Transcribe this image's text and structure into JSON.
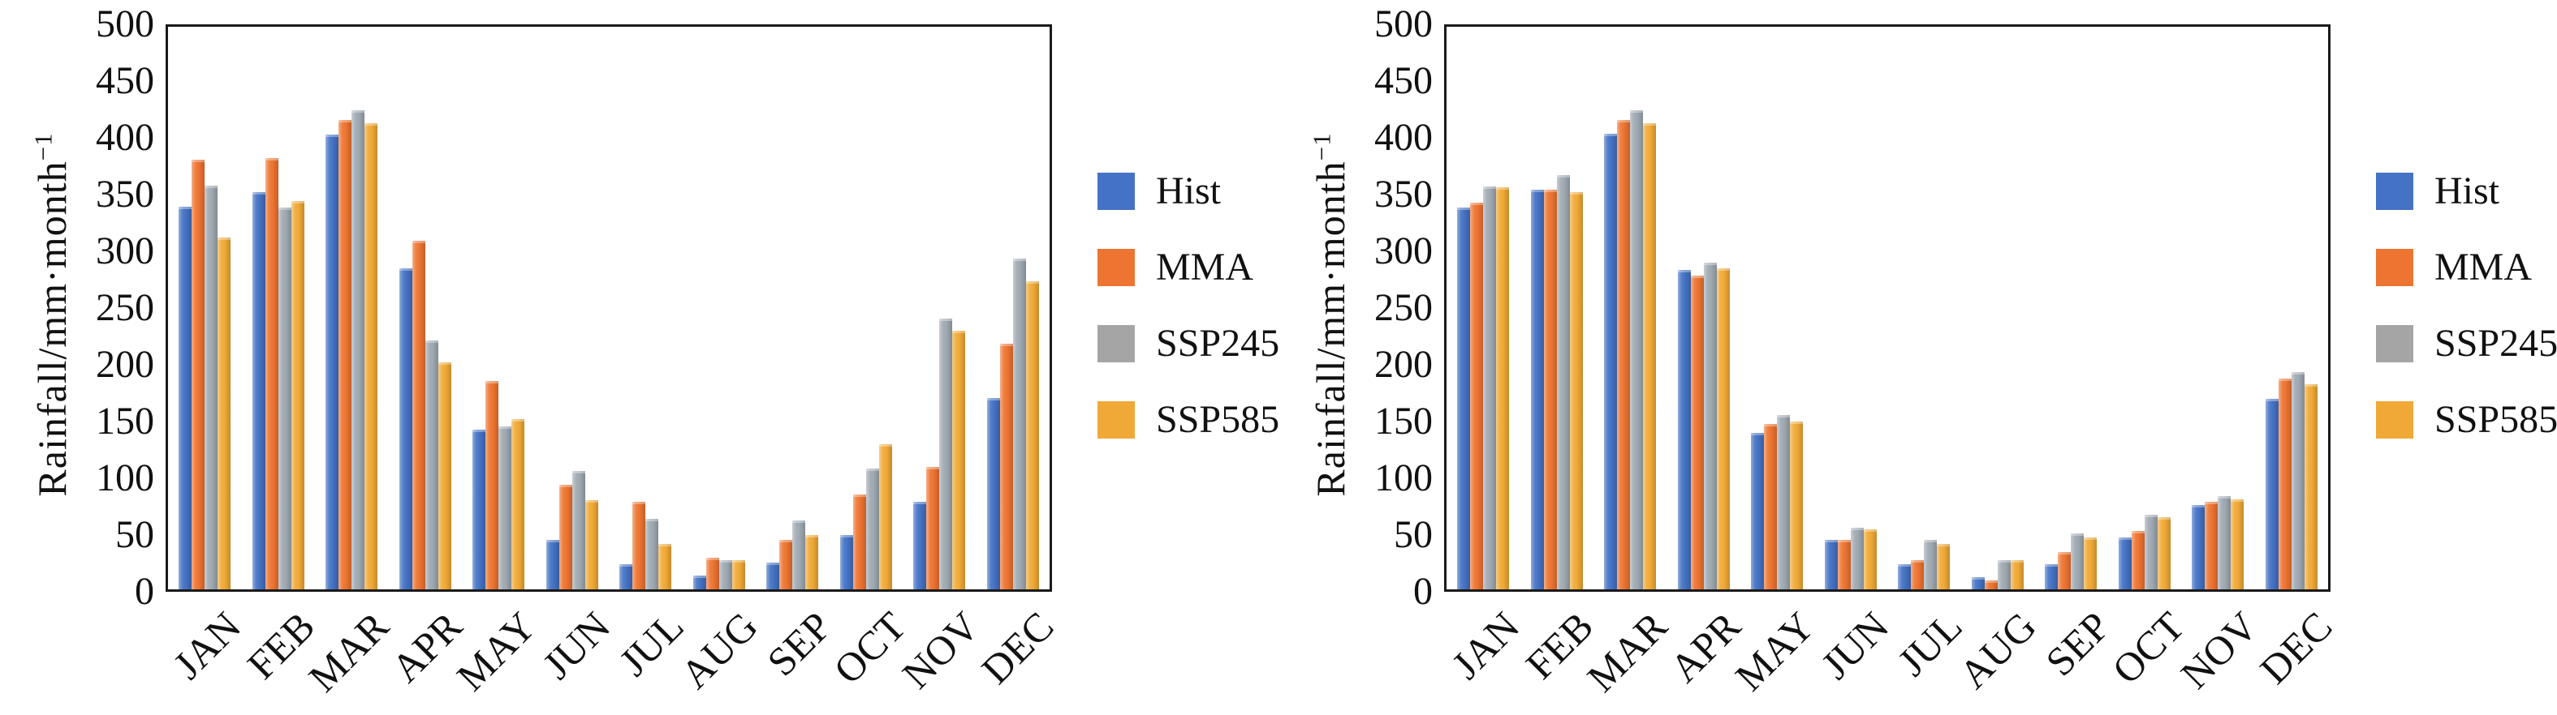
{
  "figure": {
    "background": "#ffffff",
    "axis_color": "#1a1a1a",
    "ylabel_main": "Rainfall/mm·month",
    "ylabel_sup": "−1",
    "font_color": "#111111"
  },
  "chart_data": [
    {
      "type": "bar",
      "title": "",
      "xlabel": "",
      "ylabel": "Rainfall/mm·month⁻¹",
      "ylim": [
        0,
        500
      ],
      "yticks": [
        0,
        50,
        100,
        150,
        200,
        250,
        300,
        350,
        400,
        450,
        500
      ],
      "grid": false,
      "legend_position": "right",
      "categories": [
        "JAN",
        "FEB",
        "MAR",
        "APR",
        "MAY",
        "JUN",
        "JUL",
        "AUG",
        "SEP",
        "OCT",
        "NOV",
        "DEC"
      ],
      "series": [
        {
          "name": "Hist",
          "color": "#4472C4",
          "bar_color": "#4472C4",
          "values": [
            340,
            353,
            404,
            285,
            142,
            44,
            22,
            12,
            24,
            48,
            78,
            170
          ]
        },
        {
          "name": "MMA",
          "color": "#ED7431",
          "bar_color": "#ED7431",
          "values": [
            382,
            383,
            417,
            310,
            185,
            93,
            78,
            28,
            44,
            84,
            109,
            218
          ]
        },
        {
          "name": "SSP245",
          "color": "#A5A5A5",
          "bar_color": "#9FA9B2",
          "values": [
            359,
            339,
            426,
            221,
            145,
            105,
            63,
            26,
            61,
            107,
            241,
            294
          ]
        },
        {
          "name": "SSP585",
          "color": "#F0A936",
          "bar_color": "#F0A936",
          "values": [
            313,
            345,
            414,
            202,
            151,
            79,
            40,
            26,
            48,
            129,
            230,
            274
          ]
        }
      ]
    },
    {
      "type": "bar",
      "title": "",
      "xlabel": "",
      "ylabel": "Rainfall/mm·month⁻¹",
      "ylim": [
        0,
        500
      ],
      "yticks": [
        0,
        50,
        100,
        150,
        200,
        250,
        300,
        350,
        400,
        450,
        500
      ],
      "grid": false,
      "legend_position": "right",
      "categories": [
        "JAN",
        "FEB",
        "MAR",
        "APR",
        "MAY",
        "JUN",
        "JUL",
        "AUG",
        "SEP",
        "OCT",
        "NOV",
        "DEC"
      ],
      "series": [
        {
          "name": "Hist",
          "color": "#4472C4",
          "bar_color": "#4472C4",
          "values": [
            339,
            355,
            405,
            284,
            139,
            44,
            22,
            11,
            22,
            46,
            75,
            169
          ]
        },
        {
          "name": "MMA",
          "color": "#ED7431",
          "bar_color": "#ED7431",
          "values": [
            344,
            355,
            417,
            279,
            147,
            44,
            26,
            8,
            33,
            52,
            78,
            187
          ]
        },
        {
          "name": "SSP245",
          "color": "#A5A5A5",
          "bar_color": "#9FA9B2",
          "values": [
            358,
            368,
            426,
            290,
            155,
            55,
            44,
            26,
            50,
            66,
            83,
            193
          ]
        },
        {
          "name": "SSP585",
          "color": "#F0A936",
          "bar_color": "#F0A936",
          "values": [
            357,
            353,
            414,
            285,
            149,
            53,
            40,
            26,
            46,
            64,
            80,
            182
          ]
        }
      ]
    }
  ]
}
